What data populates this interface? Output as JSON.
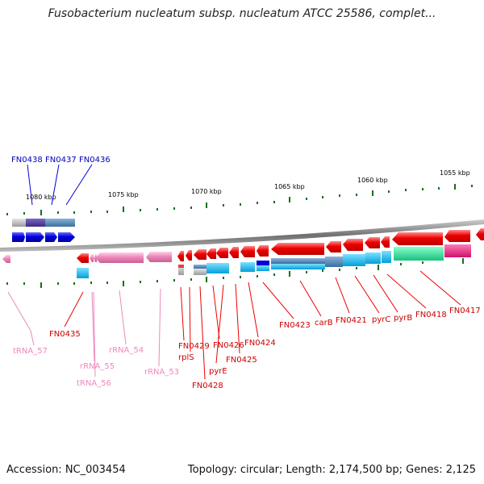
{
  "title": "Fusobacterium nucleatum subsp. nucleatum ATCC 25586, complet...",
  "footer": {
    "accession": "Accession: NC_003454",
    "summary": "Topology: circular; Length: 2,174,500 bp; Genes: 2,125"
  },
  "scale_labels": [
    "1080 kbp",
    "1075 kbp",
    "1070 kbp",
    "1065 kbp",
    "1060 kbp",
    "1055 kbp"
  ],
  "top_gene_labels": [
    "FN0438",
    "FN0437",
    "FN0436"
  ],
  "bottom_labels": [
    "tRNA_57",
    "FN0435",
    "rRNA_55",
    "tRNA_56",
    "rRNA_54",
    "rRNA_53",
    "FN0429",
    "rplS",
    "FN0428",
    "FN0426",
    "pyrE",
    "FN0425",
    "FN0424",
    "FN0423",
    "carB",
    "FN0421",
    "pyrC",
    "pyrB",
    "FN0418",
    "FN0417"
  ],
  "colors": {
    "forward_gene": "#0000dd",
    "reverse_gene": "#ee0000",
    "rna": "#ee88bb",
    "backbone": "#888888",
    "tick": "#1a6e1a",
    "cog_blue": "#00aadd",
    "cog_green": "#22cc88",
    "cog_magenta": "#ee2288"
  }
}
